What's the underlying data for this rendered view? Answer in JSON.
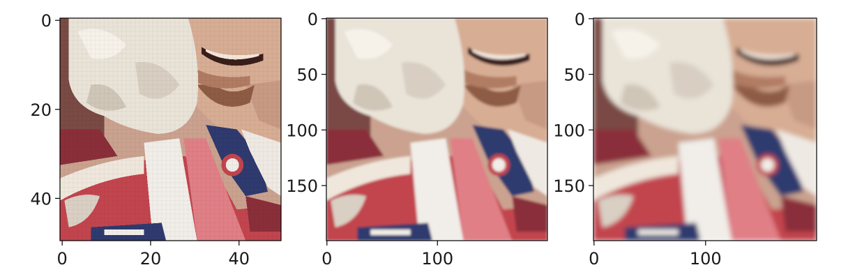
{
  "chart_data": [
    {
      "type": "image",
      "title": "",
      "xlabel": "",
      "ylabel": "",
      "xlim": [
        -0.5,
        49.5
      ],
      "ylim": [
        49.5,
        -0.5
      ],
      "xticks": [
        0,
        20,
        40
      ],
      "yticks": [
        0,
        20,
        40
      ],
      "image_description": "close-up of a smiling bearded face beside a white fur busby; red uniform tunic with white cross-belt and navy/red badged collar (low resolution, blocky pixels)"
    },
    {
      "type": "image",
      "title": "",
      "xlabel": "",
      "ylabel": "",
      "xlim": [
        -0.5,
        199.5
      ],
      "ylim": [
        199.5,
        -0.5
      ],
      "xticks": [
        0,
        100
      ],
      "yticks": [
        0,
        50,
        100,
        150
      ],
      "image_description": "same face crop shown at higher resolution (smooth)"
    },
    {
      "type": "image",
      "title": "",
      "xlabel": "",
      "ylabel": "",
      "xlim": [
        -0.5,
        199.5
      ],
      "ylim": [
        199.5,
        -0.5
      ],
      "xticks": [
        0,
        100
      ],
      "yticks": [
        0,
        50,
        100,
        150
      ],
      "image_description": "same face crop shown upscaled (slightly blurred)"
    }
  ],
  "colors": {
    "skin": "#d7ad94",
    "skin_shadow": "#b88a74",
    "fur": "#e9e3d8",
    "fur_shadow": "#cfc6b8",
    "beard": "#8e5c44",
    "tunic_red": "#c2454e",
    "tunic_dark": "#8a2f3a",
    "belt_white": "#f1ede8",
    "sash_pink": "#e07f86",
    "collar_navy": "#2f3a6e",
    "background_dark": "#6b3b3a",
    "axes": "#000000"
  }
}
